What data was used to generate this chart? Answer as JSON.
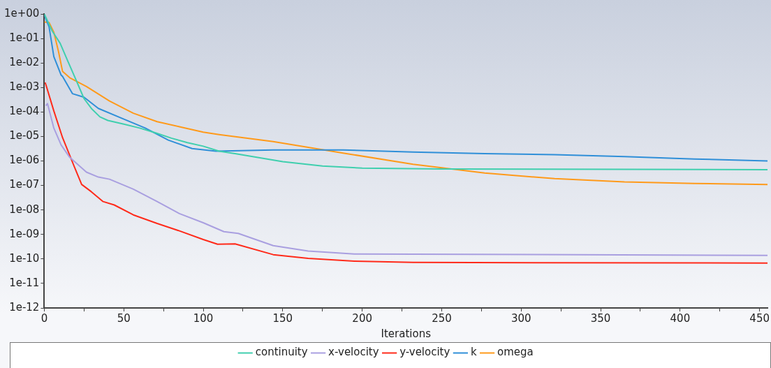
{
  "chart_data": {
    "type": "line",
    "xlabel": "Iterations",
    "log": "y",
    "grid": false,
    "legend": "bottom",
    "marker": "none",
    "line_style": "solid",
    "xlim": [
      0,
      455
    ],
    "xticks": [
      0,
      {
        "value": 25,
        "label": null
      },
      50,
      {
        "value": 75,
        "label": null
      },
      100,
      {
        "value": 125,
        "label": null
      },
      150,
      {
        "value": 175,
        "label": null
      },
      200,
      {
        "value": 225,
        "label": null
      },
      250,
      {
        "value": 275,
        "label": null
      },
      300,
      {
        "value": 325,
        "label": null
      },
      350,
      {
        "value": 375,
        "label": null
      },
      400,
      {
        "value": 425,
        "label": null
      },
      450
    ],
    "ylim": [
      1e-12,
      1
    ],
    "yticks": [
      {
        "value": 1,
        "label": "1e+00"
      },
      {
        "value": 0.1,
        "label": "1e-01"
      },
      {
        "value": 0.01,
        "label": "1e-02"
      },
      {
        "value": 0.001,
        "label": "1e-03"
      },
      {
        "value": 0.0001,
        "label": "1e-04"
      },
      {
        "value": 1e-05,
        "label": "1e-05"
      },
      {
        "value": 1e-06,
        "label": "1e-06"
      },
      {
        "value": 1e-07,
        "label": "1e-07"
      },
      {
        "value": 1e-08,
        "label": "1e-08"
      },
      {
        "value": 1e-09,
        "label": "1e-09"
      },
      {
        "value": 1e-10,
        "label": "1e-10"
      },
      {
        "value": 1e-11,
        "label": "1e-11"
      },
      {
        "value": 1e-12,
        "label": "1e-12"
      }
    ],
    "series": [
      {
        "name": "continuity",
        "color": "#3fcfae",
        "x": [
          0,
          5,
          10,
          15,
          20,
          25,
          30,
          35,
          40,
          50,
          60,
          70,
          80,
          90,
          100,
          110,
          120,
          150,
          175,
          200,
          250,
          455
        ],
        "values": [
          1,
          0.2,
          0.063,
          0.011,
          0.002,
          0.00035,
          0.00013,
          6.3e-05,
          4.5e-05,
          3.2e-05,
          2.2e-05,
          1.4e-05,
          8.5e-06,
          5.6e-06,
          4e-06,
          2.5e-06,
          2e-06,
          9.3e-07,
          6.2e-07,
          5.1e-07,
          4.7e-07,
          4.4e-07
        ]
      },
      {
        "name": "x-velocity",
        "color": "#a99fe0",
        "x": [
          1,
          2,
          6,
          10.6,
          16,
          26.5,
          34,
          41,
          56,
          71,
          85,
          100,
          113,
          122,
          144,
          166,
          195,
          455
        ],
        "values": [
          0.00018,
          0.00022,
          2.2e-05,
          4.5e-06,
          1.4e-06,
          3.5e-07,
          2.2e-07,
          1.8e-07,
          7.1e-08,
          2.2e-08,
          7.1e-09,
          3e-09,
          1.3e-09,
          1.1e-09,
          3.5e-10,
          2.1e-10,
          1.6e-10,
          1.4e-10
        ]
      },
      {
        "name": "y-velocity",
        "color": "#ff2a1a",
        "x": [
          0.5,
          1,
          6,
          11.5,
          19,
          23.5,
          29.5,
          37,
          44,
          56,
          71,
          85,
          100,
          109,
          120,
          144,
          166,
          195,
          232,
          455
        ],
        "values": [
          0.0016,
          0.0013,
          0.00011,
          8.9e-06,
          5.6e-07,
          1.1e-07,
          5.6e-08,
          2.2e-08,
          1.6e-08,
          6.3e-09,
          2.8e-09,
          1.4e-09,
          6.2e-10,
          4e-10,
          4.1e-10,
          1.5e-10,
          1.05e-10,
          8.1e-11,
          7.2e-11,
          6.8e-11
        ]
      },
      {
        "name": "k",
        "color": "#2f8fd8",
        "x": [
          0,
          3,
          6,
          10.6,
          11.5,
          17.7,
          25,
          34,
          48.5,
          63.5,
          78,
          93,
          108,
          144,
          188,
          232,
          277,
          321,
          365,
          409,
          455
        ],
        "values": [
          0.9,
          0.3,
          0.018,
          0.0032,
          0.0028,
          0.00056,
          0.0004,
          0.00014,
          5.6e-05,
          2.2e-05,
          7.1e-06,
          3.2e-06,
          2.5e-06,
          2.8e-06,
          2.8e-06,
          2.3e-06,
          2e-06,
          1.8e-06,
          1.5e-06,
          1.2e-06,
          1e-06
        ]
      },
      {
        "name": "omega",
        "color": "#ff9a1a",
        "x": [
          0,
          3,
          6,
          9,
          11.5,
          16,
          26.5,
          41,
          56,
          71,
          85,
          100,
          110,
          144,
          188,
          232,
          277,
          321,
          365,
          409,
          455
        ],
        "values": [
          0.47,
          0.45,
          0.18,
          0.028,
          0.0045,
          0.0025,
          0.0011,
          0.00028,
          8.9e-05,
          4e-05,
          2.5e-05,
          1.5e-05,
          1.2e-05,
          6.2e-06,
          2.1e-06,
          7.3e-07,
          3.2e-07,
          1.9e-07,
          1.4e-07,
          1.2e-07,
          1.1e-07
        ]
      }
    ]
  }
}
